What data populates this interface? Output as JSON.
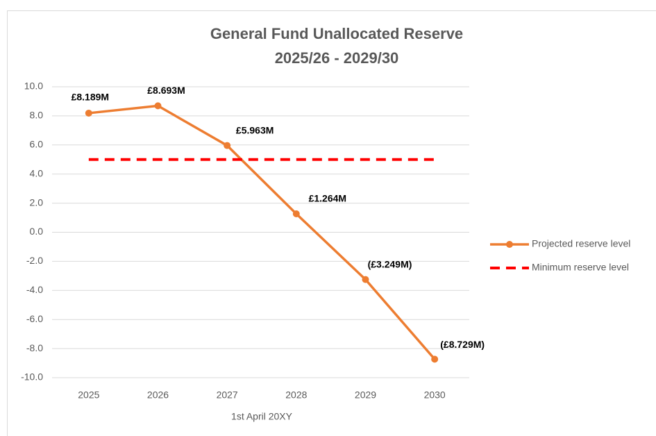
{
  "chart_data": {
    "type": "line",
    "title": [
      "General Fund Unallocated Reserve",
      "2025/26 - 2029/30"
    ],
    "x_label": "1st April 20XY",
    "categories": [
      "2025",
      "2026",
      "2027",
      "2028",
      "2029",
      "2030"
    ],
    "series": [
      {
        "name": "Projected reserve level",
        "color": "#ed7d31",
        "values": [
          8.189,
          8.693,
          5.963,
          1.264,
          -3.249,
          -8.729
        ],
        "value_labels": [
          "£8.189M",
          "£8.693M",
          "£5.963M",
          "£1.264M",
          "(£3.249M)",
          "(£8.729M)"
        ],
        "marker": true
      },
      {
        "name": "Minimum reserve level",
        "color": "#ff0000",
        "values": [
          5,
          5,
          5,
          5,
          5,
          5
        ],
        "dashed": true
      }
    ],
    "ylim": [
      -10,
      10
    ],
    "yticks": [
      {
        "value": -10,
        "label": "-10.0"
      },
      {
        "value": -8,
        "label": "-8.0"
      },
      {
        "value": -6,
        "label": "-6.0"
      },
      {
        "value": -4,
        "label": "-4.0"
      },
      {
        "value": -2,
        "label": "-2.0"
      },
      {
        "value": 0,
        "label": "0.0"
      },
      {
        "value": 2,
        "label": "2.0"
      },
      {
        "value": 4,
        "label": "4.0"
      },
      {
        "value": 6,
        "label": "6.0"
      },
      {
        "value": 8,
        "label": "8.0"
      },
      {
        "value": 10,
        "label": "10.0"
      }
    ],
    "grid": true,
    "legend": "right"
  }
}
